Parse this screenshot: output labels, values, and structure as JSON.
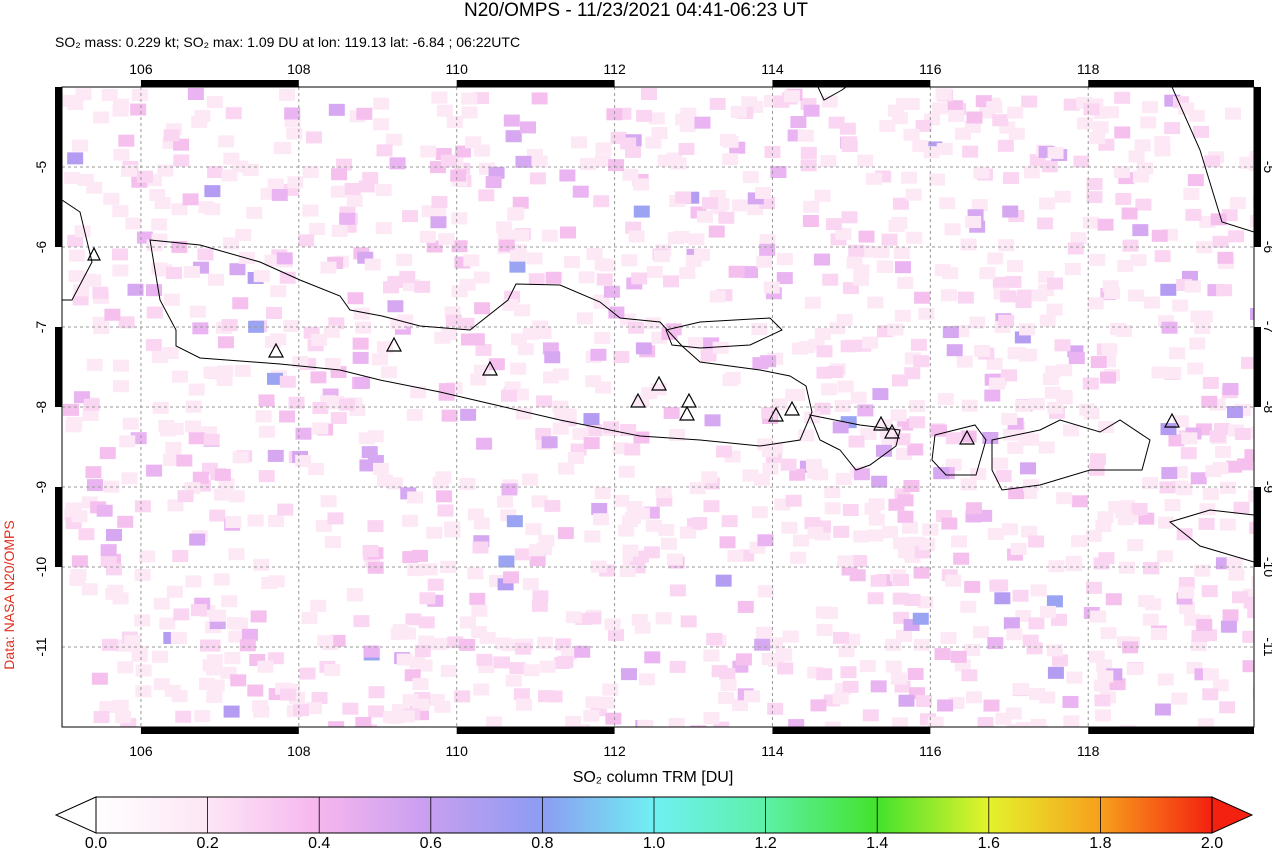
{
  "header": {
    "title": "N20/OMPS - 11/23/2021 04:41-06:23 UT",
    "subtitle": "SO₂ mass: 0.229 kt; SO₂ max: 1.09 DU at lon: 119.13 lat: -6.84 ; 06:22UTC",
    "credit": "Data: NASA N20/OMPS"
  },
  "map": {
    "xlim": [
      105,
      120.1
    ],
    "ylim": [
      -12,
      -4
    ],
    "xticks": [
      106,
      108,
      110,
      112,
      114,
      116,
      118
    ],
    "yticks": [
      -5,
      -6,
      -7,
      -8,
      -9,
      -10,
      -11
    ],
    "grid": true
  },
  "colorbar": {
    "label": "SO₂ column TRM [DU]",
    "lim": [
      0,
      2
    ],
    "ticks": [
      {
        "value": 0,
        "label": "0.0"
      },
      {
        "value": 0.2,
        "label": "0.2"
      },
      {
        "value": 0.4,
        "label": "0.4"
      },
      {
        "value": 0.6,
        "label": "0.6"
      },
      {
        "value": 0.8,
        "label": "0.8"
      },
      {
        "value": 1,
        "label": "1.0"
      },
      {
        "value": 1.2,
        "label": "1.2"
      },
      {
        "value": 1.4,
        "label": "1.4"
      },
      {
        "value": 1.6,
        "label": "1.6"
      },
      {
        "value": 1.8,
        "label": "1.8"
      },
      {
        "value": 2,
        "label": "2.0"
      }
    ]
  }
}
